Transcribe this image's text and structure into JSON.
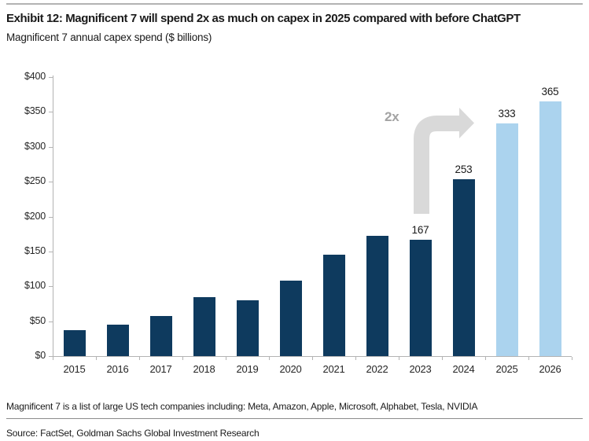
{
  "header": {
    "title": "Exhibit 12: Magnificent 7 will spend 2x as much on capex in 2025 compared with before ChatGPT",
    "subtitle": "Magnificent 7 annual capex spend ($ billions)"
  },
  "chart_data": {
    "type": "bar",
    "title": "Magnificent 7 annual capex spend ($ billions)",
    "categories": [
      "2015",
      "2016",
      "2017",
      "2018",
      "2019",
      "2020",
      "2021",
      "2022",
      "2023",
      "2024",
      "2025",
      "2026"
    ],
    "values": [
      37,
      45,
      57,
      84,
      80,
      108,
      145,
      172,
      167,
      253,
      333,
      365
    ],
    "data_labels": {
      "2023": "167",
      "2024": "253",
      "2025": "333",
      "2026": "365"
    },
    "estimate_categories": [
      "2025",
      "2026"
    ],
    "xlabel": "",
    "ylabel": "$ billions",
    "ylim": [
      0,
      400
    ],
    "ytick_step": 50,
    "ytick_labels": [
      "$0",
      "$50",
      "$100",
      "$150",
      "$200",
      "$250",
      "$300",
      "$350",
      "$400"
    ],
    "grid": false,
    "legend": "none",
    "annotation": {
      "text": "2x"
    },
    "colors": {
      "actual_bar": "#0e3a5e",
      "estimate_bar": "#abd3ee",
      "arrow": "#d9d9d9",
      "annotation_text": "#a3a3a3",
      "axis": "#b3b3b3"
    }
  },
  "footer": {
    "footnote": "Magnificent 7 is a list of large US tech companies including: Meta, Amazon, Apple, Microsoft, Alphabet, Tesla, NVIDIA",
    "source": "Source: FactSet, Goldman Sachs Global Investment Research"
  }
}
